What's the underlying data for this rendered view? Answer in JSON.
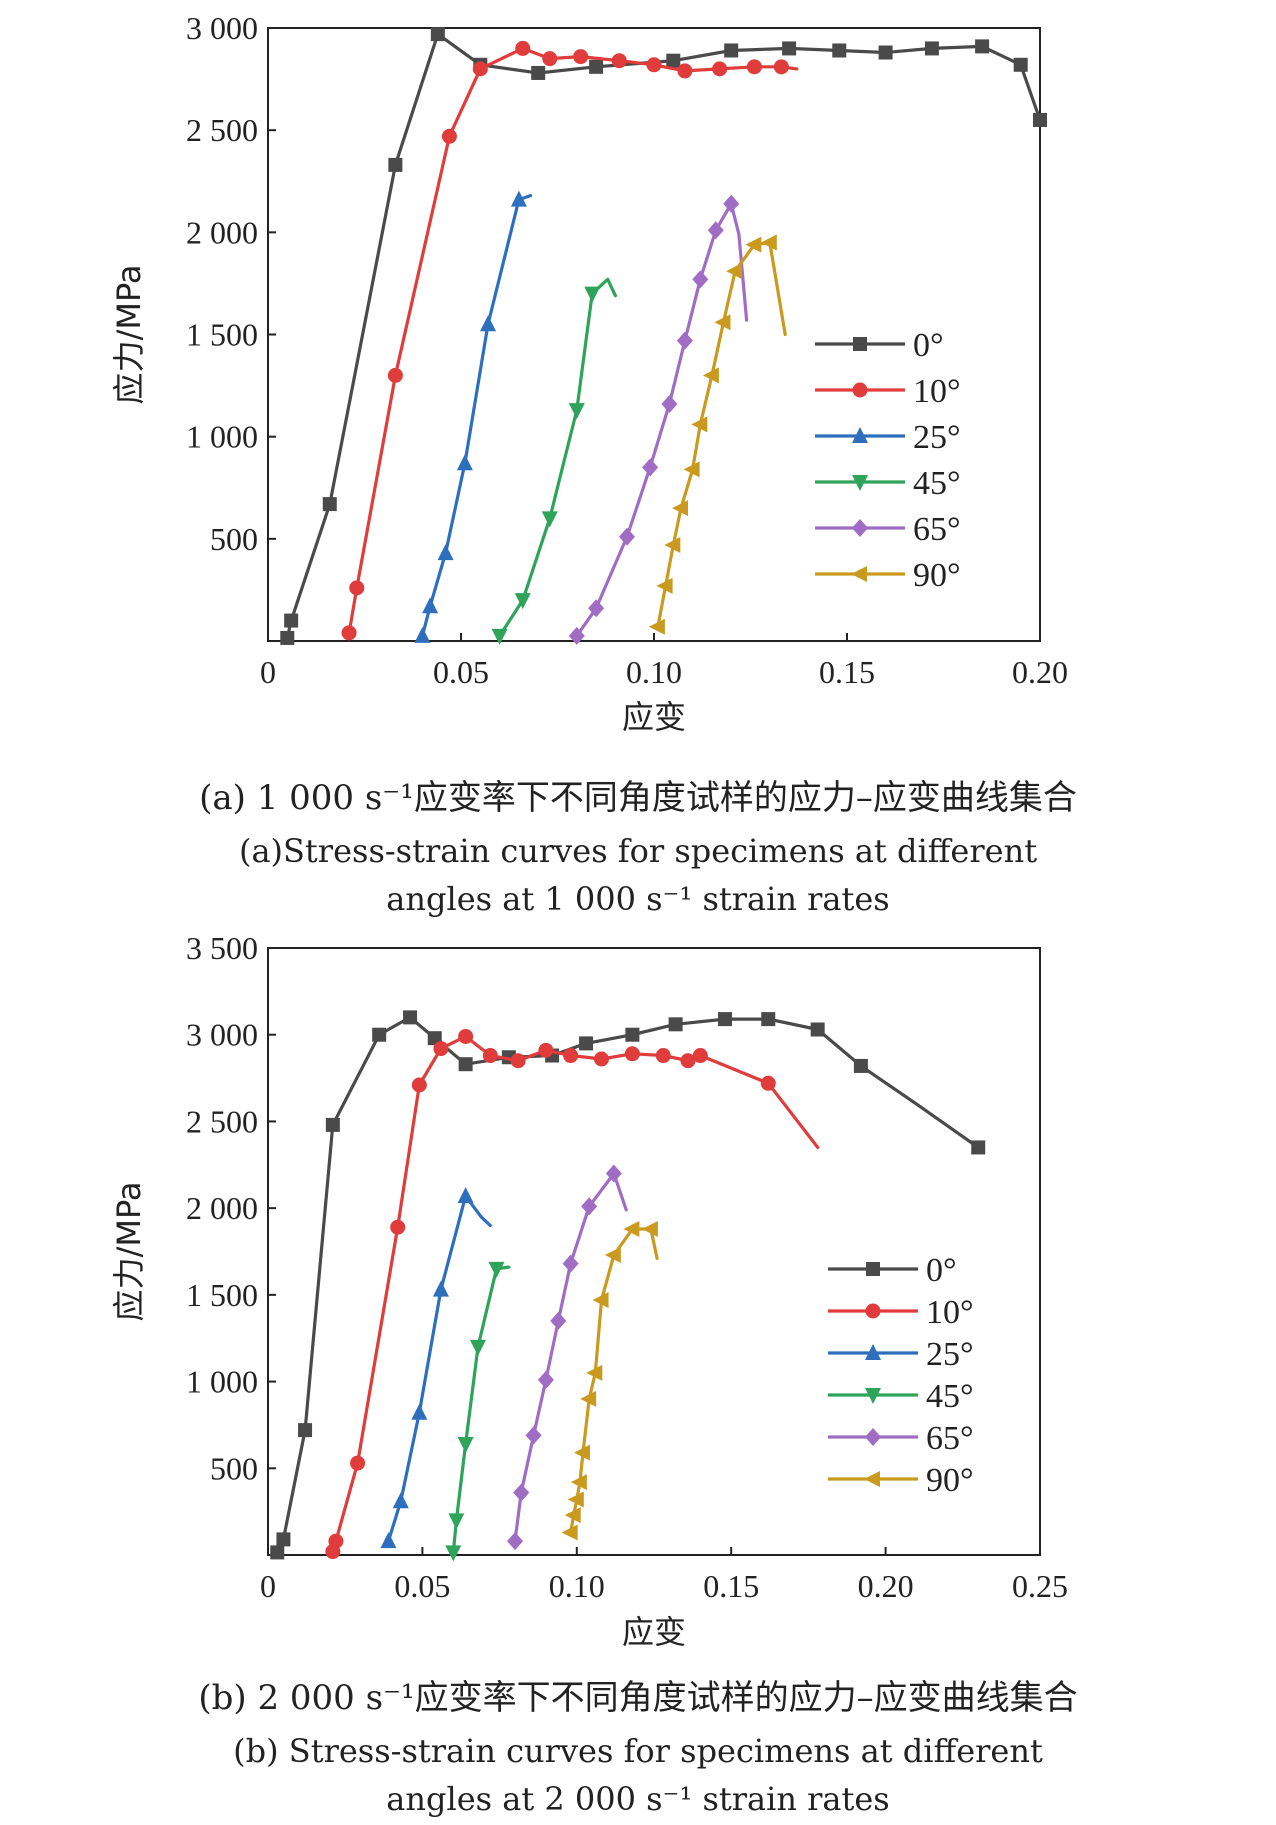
{
  "chart_data": [
    {
      "type": "line",
      "ylabel": "应力/MPa",
      "xlabel": "应变",
      "xlim": [
        0,
        0.2
      ],
      "ylim": [
        0,
        3000
      ],
      "xticks": [
        0,
        0.05,
        0.1,
        0.15,
        0.2
      ],
      "xtick_labels": [
        "0",
        "0.05",
        "0.10",
        "0.15",
        "0.20"
      ],
      "yticks": [
        500,
        1000,
        1500,
        2000,
        2500,
        3000
      ],
      "ytick_labels": [
        "500",
        "1 000",
        "1 500",
        "2 000",
        "2 500",
        "3 000"
      ],
      "legend_position": "right",
      "caption_cn": "(a) 1 000 s⁻¹应变率下不同角度试样的应力–应变曲线集合",
      "caption_en_1": "(a)Stress-strain curves for specimens at different",
      "caption_en_2": "angles at 1 000 s⁻¹ strain rates",
      "series": [
        {
          "name": "0°",
          "color": "#4a4a4a",
          "marker": "square",
          "x": [
            0.005,
            0.006,
            0.016,
            0.033,
            0.044,
            0.055,
            0.07,
            0.085,
            0.105,
            0.12,
            0.135,
            0.148,
            0.16,
            0.172,
            0.185,
            0.195,
            0.2
          ],
          "y": [
            15,
            100,
            670,
            2330,
            2970,
            2820,
            2780,
            2810,
            2840,
            2890,
            2900,
            2890,
            2880,
            2900,
            2910,
            2820,
            2550
          ],
          "marker_x": [
            0.005,
            0.006,
            0.016,
            0.033,
            0.044,
            0.055,
            0.07,
            0.085,
            0.105,
            0.12,
            0.135,
            0.148,
            0.16,
            0.172,
            0.185,
            0.195,
            0.2
          ],
          "marker_y": [
            15,
            100,
            670,
            2330,
            2970,
            2820,
            2780,
            2810,
            2840,
            2890,
            2900,
            2890,
            2880,
            2900,
            2910,
            2820,
            2550
          ]
        },
        {
          "name": "10°",
          "color": "#e03c3c",
          "marker": "circle",
          "x": [
            0.021,
            0.023,
            0.033,
            0.047,
            0.055,
            0.066,
            0.073,
            0.081,
            0.091,
            0.1,
            0.108,
            0.117,
            0.126,
            0.133,
            0.137
          ],
          "y": [
            40,
            260,
            1300,
            2470,
            2800,
            2900,
            2850,
            2860,
            2840,
            2820,
            2790,
            2800,
            2810,
            2810,
            2800
          ],
          "marker_x": [
            0.021,
            0.023,
            0.033,
            0.047,
            0.055,
            0.066,
            0.073,
            0.081,
            0.091,
            0.1,
            0.108,
            0.117,
            0.126,
            0.133
          ],
          "marker_y": [
            40,
            260,
            1300,
            2470,
            2800,
            2900,
            2850,
            2860,
            2840,
            2820,
            2790,
            2800,
            2810,
            2810
          ]
        },
        {
          "name": "25°",
          "color": "#2e6fbd",
          "marker": "triangle-up",
          "x": [
            0.04,
            0.042,
            0.046,
            0.051,
            0.057,
            0.065,
            0.068
          ],
          "y": [
            25,
            170,
            430,
            870,
            1550,
            2160,
            2180
          ],
          "marker_x": [
            0.04,
            0.042,
            0.046,
            0.051,
            0.057,
            0.065
          ],
          "marker_y": [
            25,
            170,
            430,
            870,
            1550,
            2160
          ]
        },
        {
          "name": "45°",
          "color": "#2ea35a",
          "marker": "triangle-down",
          "x": [
            0.06,
            0.066,
            0.073,
            0.08,
            0.084,
            0.088,
            0.09
          ],
          "y": [
            25,
            200,
            600,
            1130,
            1700,
            1770,
            1690
          ],
          "marker_x": [
            0.06,
            0.066,
            0.073,
            0.08,
            0.084
          ],
          "marker_y": [
            25,
            200,
            600,
            1130,
            1700
          ]
        },
        {
          "name": "65°",
          "color": "#a06cc4",
          "marker": "diamond",
          "x": [
            0.08,
            0.085,
            0.093,
            0.099,
            0.104,
            0.108,
            0.112,
            0.116,
            0.12,
            0.122,
            0.124
          ],
          "y": [
            25,
            160,
            510,
            850,
            1160,
            1470,
            1770,
            2010,
            2140,
            1990,
            1570
          ],
          "marker_x": [
            0.08,
            0.085,
            0.093,
            0.099,
            0.104,
            0.108,
            0.112,
            0.116,
            0.12
          ],
          "marker_y": [
            25,
            160,
            510,
            850,
            1160,
            1470,
            1770,
            2010,
            2140
          ]
        },
        {
          "name": "90°",
          "color": "#c99a1e",
          "marker": "triangle-left",
          "x": [
            0.101,
            0.103,
            0.105,
            0.107,
            0.11,
            0.112,
            0.115,
            0.118,
            0.121,
            0.126,
            0.13,
            0.134
          ],
          "y": [
            70,
            270,
            470,
            650,
            840,
            1060,
            1300,
            1560,
            1810,
            1940,
            1950,
            1500
          ],
          "marker_x": [
            0.101,
            0.103,
            0.105,
            0.107,
            0.11,
            0.112,
            0.115,
            0.118,
            0.121,
            0.126,
            0.13
          ],
          "marker_y": [
            70,
            270,
            470,
            650,
            840,
            1060,
            1300,
            1560,
            1810,
            1940,
            1950
          ]
        }
      ]
    },
    {
      "type": "line",
      "ylabel": "应力/MPa",
      "xlabel": "应变",
      "xlim": [
        0,
        0.25
      ],
      "ylim": [
        0,
        3500
      ],
      "xticks": [
        0,
        0.05,
        0.1,
        0.15,
        0.2,
        0.25
      ],
      "xtick_labels": [
        "0",
        "0.05",
        "0.10",
        "0.15",
        "0.20",
        "0.25"
      ],
      "yticks": [
        500,
        1000,
        1500,
        2000,
        2500,
        3000,
        3500
      ],
      "ytick_labels": [
        "500",
        "1 000",
        "1 500",
        "2 000",
        "2 500",
        "3 000",
        "3 500"
      ],
      "legend_position": "right",
      "caption_cn": "(b) 2 000 s⁻¹应变率下不同角度试样的应力–应变曲线集合",
      "caption_en_1": "(b) Stress-strain curves for specimens at different",
      "caption_en_2": "angles at 2 000 s⁻¹ strain rates",
      "series": [
        {
          "name": "0°",
          "color": "#4a4a4a",
          "marker": "square",
          "x": [
            0.003,
            0.005,
            0.012,
            0.021,
            0.036,
            0.046,
            0.054,
            0.064,
            0.078,
            0.092,
            0.103,
            0.118,
            0.132,
            0.148,
            0.162,
            0.178,
            0.192,
            0.21,
            0.23
          ],
          "y": [
            15,
            90,
            720,
            2480,
            3000,
            3100,
            2980,
            2830,
            2870,
            2880,
            2950,
            3000,
            3060,
            3090,
            3090,
            3030,
            2820,
            2600,
            2350
          ],
          "marker_x": [
            0.003,
            0.005,
            0.012,
            0.021,
            0.036,
            0.046,
            0.054,
            0.064,
            0.078,
            0.092,
            0.103,
            0.118,
            0.132,
            0.148,
            0.162,
            0.178,
            0.192,
            0.23
          ],
          "marker_y": [
            15,
            90,
            720,
            2480,
            3000,
            3100,
            2980,
            2830,
            2870,
            2880,
            2950,
            3000,
            3060,
            3090,
            3090,
            3030,
            2820,
            2350
          ]
        },
        {
          "name": "10°",
          "color": "#e03c3c",
          "marker": "circle",
          "x": [
            0.021,
            0.022,
            0.029,
            0.042,
            0.049,
            0.056,
            0.064,
            0.072,
            0.081,
            0.09,
            0.098,
            0.108,
            0.118,
            0.128,
            0.136,
            0.14,
            0.162,
            0.178
          ],
          "y": [
            20,
            80,
            530,
            1890,
            2710,
            2920,
            2990,
            2880,
            2850,
            2910,
            2880,
            2860,
            2890,
            2880,
            2850,
            2880,
            2720,
            2350
          ],
          "marker_x": [
            0.021,
            0.022,
            0.029,
            0.042,
            0.049,
            0.056,
            0.064,
            0.072,
            0.081,
            0.09,
            0.098,
            0.108,
            0.118,
            0.128,
            0.136,
            0.14,
            0.162
          ],
          "marker_y": [
            20,
            80,
            530,
            1890,
            2710,
            2920,
            2990,
            2880,
            2850,
            2910,
            2880,
            2860,
            2890,
            2880,
            2850,
            2880,
            2720
          ]
        },
        {
          "name": "25°",
          "color": "#2e6fbd",
          "marker": "triangle-up",
          "x": [
            0.039,
            0.043,
            0.049,
            0.056,
            0.064,
            0.069,
            0.072
          ],
          "y": [
            80,
            310,
            820,
            1530,
            2070,
            1950,
            1900
          ],
          "marker_x": [
            0.039,
            0.043,
            0.049,
            0.056,
            0.064
          ],
          "marker_y": [
            80,
            310,
            820,
            1530,
            2070
          ]
        },
        {
          "name": "45°",
          "color": "#2ea35a",
          "marker": "triangle-down",
          "x": [
            0.06,
            0.061,
            0.064,
            0.068,
            0.074,
            0.078
          ],
          "y": [
            15,
            200,
            640,
            1200,
            1650,
            1660
          ],
          "marker_x": [
            0.06,
            0.061,
            0.064,
            0.068,
            0.074
          ],
          "marker_y": [
            15,
            200,
            640,
            1200,
            1650
          ]
        },
        {
          "name": "65°",
          "color": "#a06cc4",
          "marker": "diamond",
          "x": [
            0.08,
            0.082,
            0.086,
            0.09,
            0.094,
            0.098,
            0.104,
            0.112,
            0.116
          ],
          "y": [
            80,
            360,
            690,
            1010,
            1350,
            1680,
            2010,
            2200,
            1990
          ],
          "marker_x": [
            0.08,
            0.082,
            0.086,
            0.09,
            0.094,
            0.098,
            0.104,
            0.112
          ],
          "marker_y": [
            80,
            360,
            690,
            1010,
            1350,
            1680,
            2010,
            2200
          ]
        },
        {
          "name": "90°",
          "color": "#c99a1e",
          "marker": "triangle-left",
          "x": [
            0.098,
            0.099,
            0.1,
            0.101,
            0.102,
            0.104,
            0.106,
            0.108,
            0.112,
            0.118,
            0.124,
            0.126
          ],
          "y": [
            130,
            230,
            320,
            420,
            590,
            900,
            1050,
            1470,
            1730,
            1880,
            1880,
            1710
          ],
          "marker_x": [
            0.098,
            0.099,
            0.1,
            0.101,
            0.102,
            0.104,
            0.106,
            0.108,
            0.112,
            0.118,
            0.124
          ],
          "marker_y": [
            130,
            230,
            320,
            420,
            590,
            900,
            1050,
            1470,
            1730,
            1880,
            1880
          ]
        }
      ]
    }
  ]
}
